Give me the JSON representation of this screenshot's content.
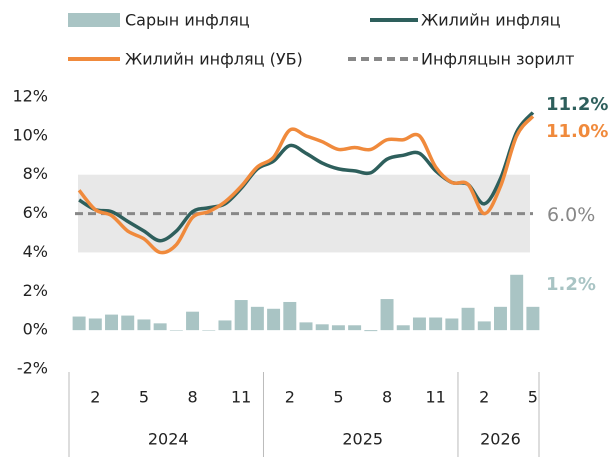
{
  "chart_data": {
    "type": "bar-line",
    "categories": [
      null,
      "2",
      null,
      null,
      "5",
      null,
      null,
      "8",
      null,
      null,
      "11",
      null,
      null,
      "2",
      null,
      null,
      "5",
      null,
      null,
      "8",
      null,
      null,
      "11",
      null,
      null,
      "2",
      null,
      null,
      "5"
    ],
    "years": [
      {
        "label": "2024",
        "months": 12
      },
      {
        "label": "2025",
        "months": 12
      },
      {
        "label": "2026",
        "months": 5
      }
    ],
    "series": [
      {
        "name": "Сарын инфляц",
        "kind": "bar",
        "color": "#a9c4c4",
        "values": [
          0.7,
          0.6,
          0.8,
          0.75,
          0.55,
          0.35,
          0,
          0.95,
          0,
          0.5,
          1.55,
          1.2,
          1.1,
          1.45,
          0.4,
          0.3,
          0.25,
          0.25,
          -0.05,
          1.6,
          0.25,
          0.65,
          0.65,
          0.6,
          1.15,
          0.45,
          1.2,
          2.85,
          1.2
        ],
        "value_labels": [
          null,
          null,
          null,
          null,
          null,
          null,
          null,
          null,
          null,
          null,
          null,
          null,
          null,
          null,
          null,
          null,
          null,
          null,
          null,
          null,
          null,
          null,
          null,
          null,
          null,
          null,
          null,
          null,
          "1.2%"
        ]
      },
      {
        "name": "Жилийн инфляц",
        "kind": "line",
        "color": "#2e5f5c",
        "values": [
          6.7,
          6.2,
          6.1,
          5.6,
          5.1,
          4.6,
          5.1,
          6.1,
          6.3,
          6.5,
          7.3,
          8.3,
          8.7,
          9.5,
          9.1,
          8.6,
          8.3,
          8.2,
          8.1,
          8.8,
          9.0,
          9.1,
          8.2,
          7.6,
          7.5,
          6.5,
          7.8,
          10.2,
          11.2
        ],
        "value_labels": [
          null,
          null,
          null,
          null,
          null,
          null,
          null,
          null,
          null,
          null,
          null,
          null,
          null,
          null,
          null,
          null,
          null,
          null,
          null,
          null,
          null,
          null,
          null,
          null,
          null,
          null,
          null,
          null,
          "11.2%"
        ]
      },
      {
        "name": "Жилийн инфляц (УБ)",
        "kind": "line",
        "color": "#f08a3c",
        "values": [
          7.2,
          6.2,
          5.9,
          5.1,
          4.7,
          4.0,
          4.4,
          5.8,
          6.1,
          6.6,
          7.4,
          8.4,
          8.9,
          10.3,
          10.0,
          9.7,
          9.3,
          9.4,
          9.3,
          9.8,
          9.8,
          10.0,
          8.4,
          7.6,
          7.5,
          6.0,
          7.4,
          10.0,
          11.0
        ],
        "value_labels": [
          null,
          null,
          null,
          null,
          null,
          null,
          null,
          null,
          null,
          null,
          null,
          null,
          null,
          null,
          null,
          null,
          null,
          null,
          null,
          null,
          null,
          null,
          null,
          null,
          null,
          null,
          null,
          null,
          "11.0%"
        ]
      }
    ],
    "target": {
      "name": "Инфляцын зорилт",
      "value": 6,
      "label": "6.0%",
      "color": "#888888"
    },
    "band": [
      4,
      8
    ],
    "band_color": "#e8e8e8",
    "ylim": [
      -2,
      12
    ],
    "yticks": [
      {
        "value": -2,
        "label": "-2%"
      },
      {
        "value": 0,
        "label": "0%"
      },
      {
        "value": 2,
        "label": "2%"
      },
      {
        "value": 4,
        "label": "4%"
      },
      {
        "value": 6,
        "label": "6%"
      },
      {
        "value": 8,
        "label": "8%"
      },
      {
        "value": 10,
        "label": "10%"
      },
      {
        "value": 12,
        "label": "12%"
      }
    ]
  }
}
